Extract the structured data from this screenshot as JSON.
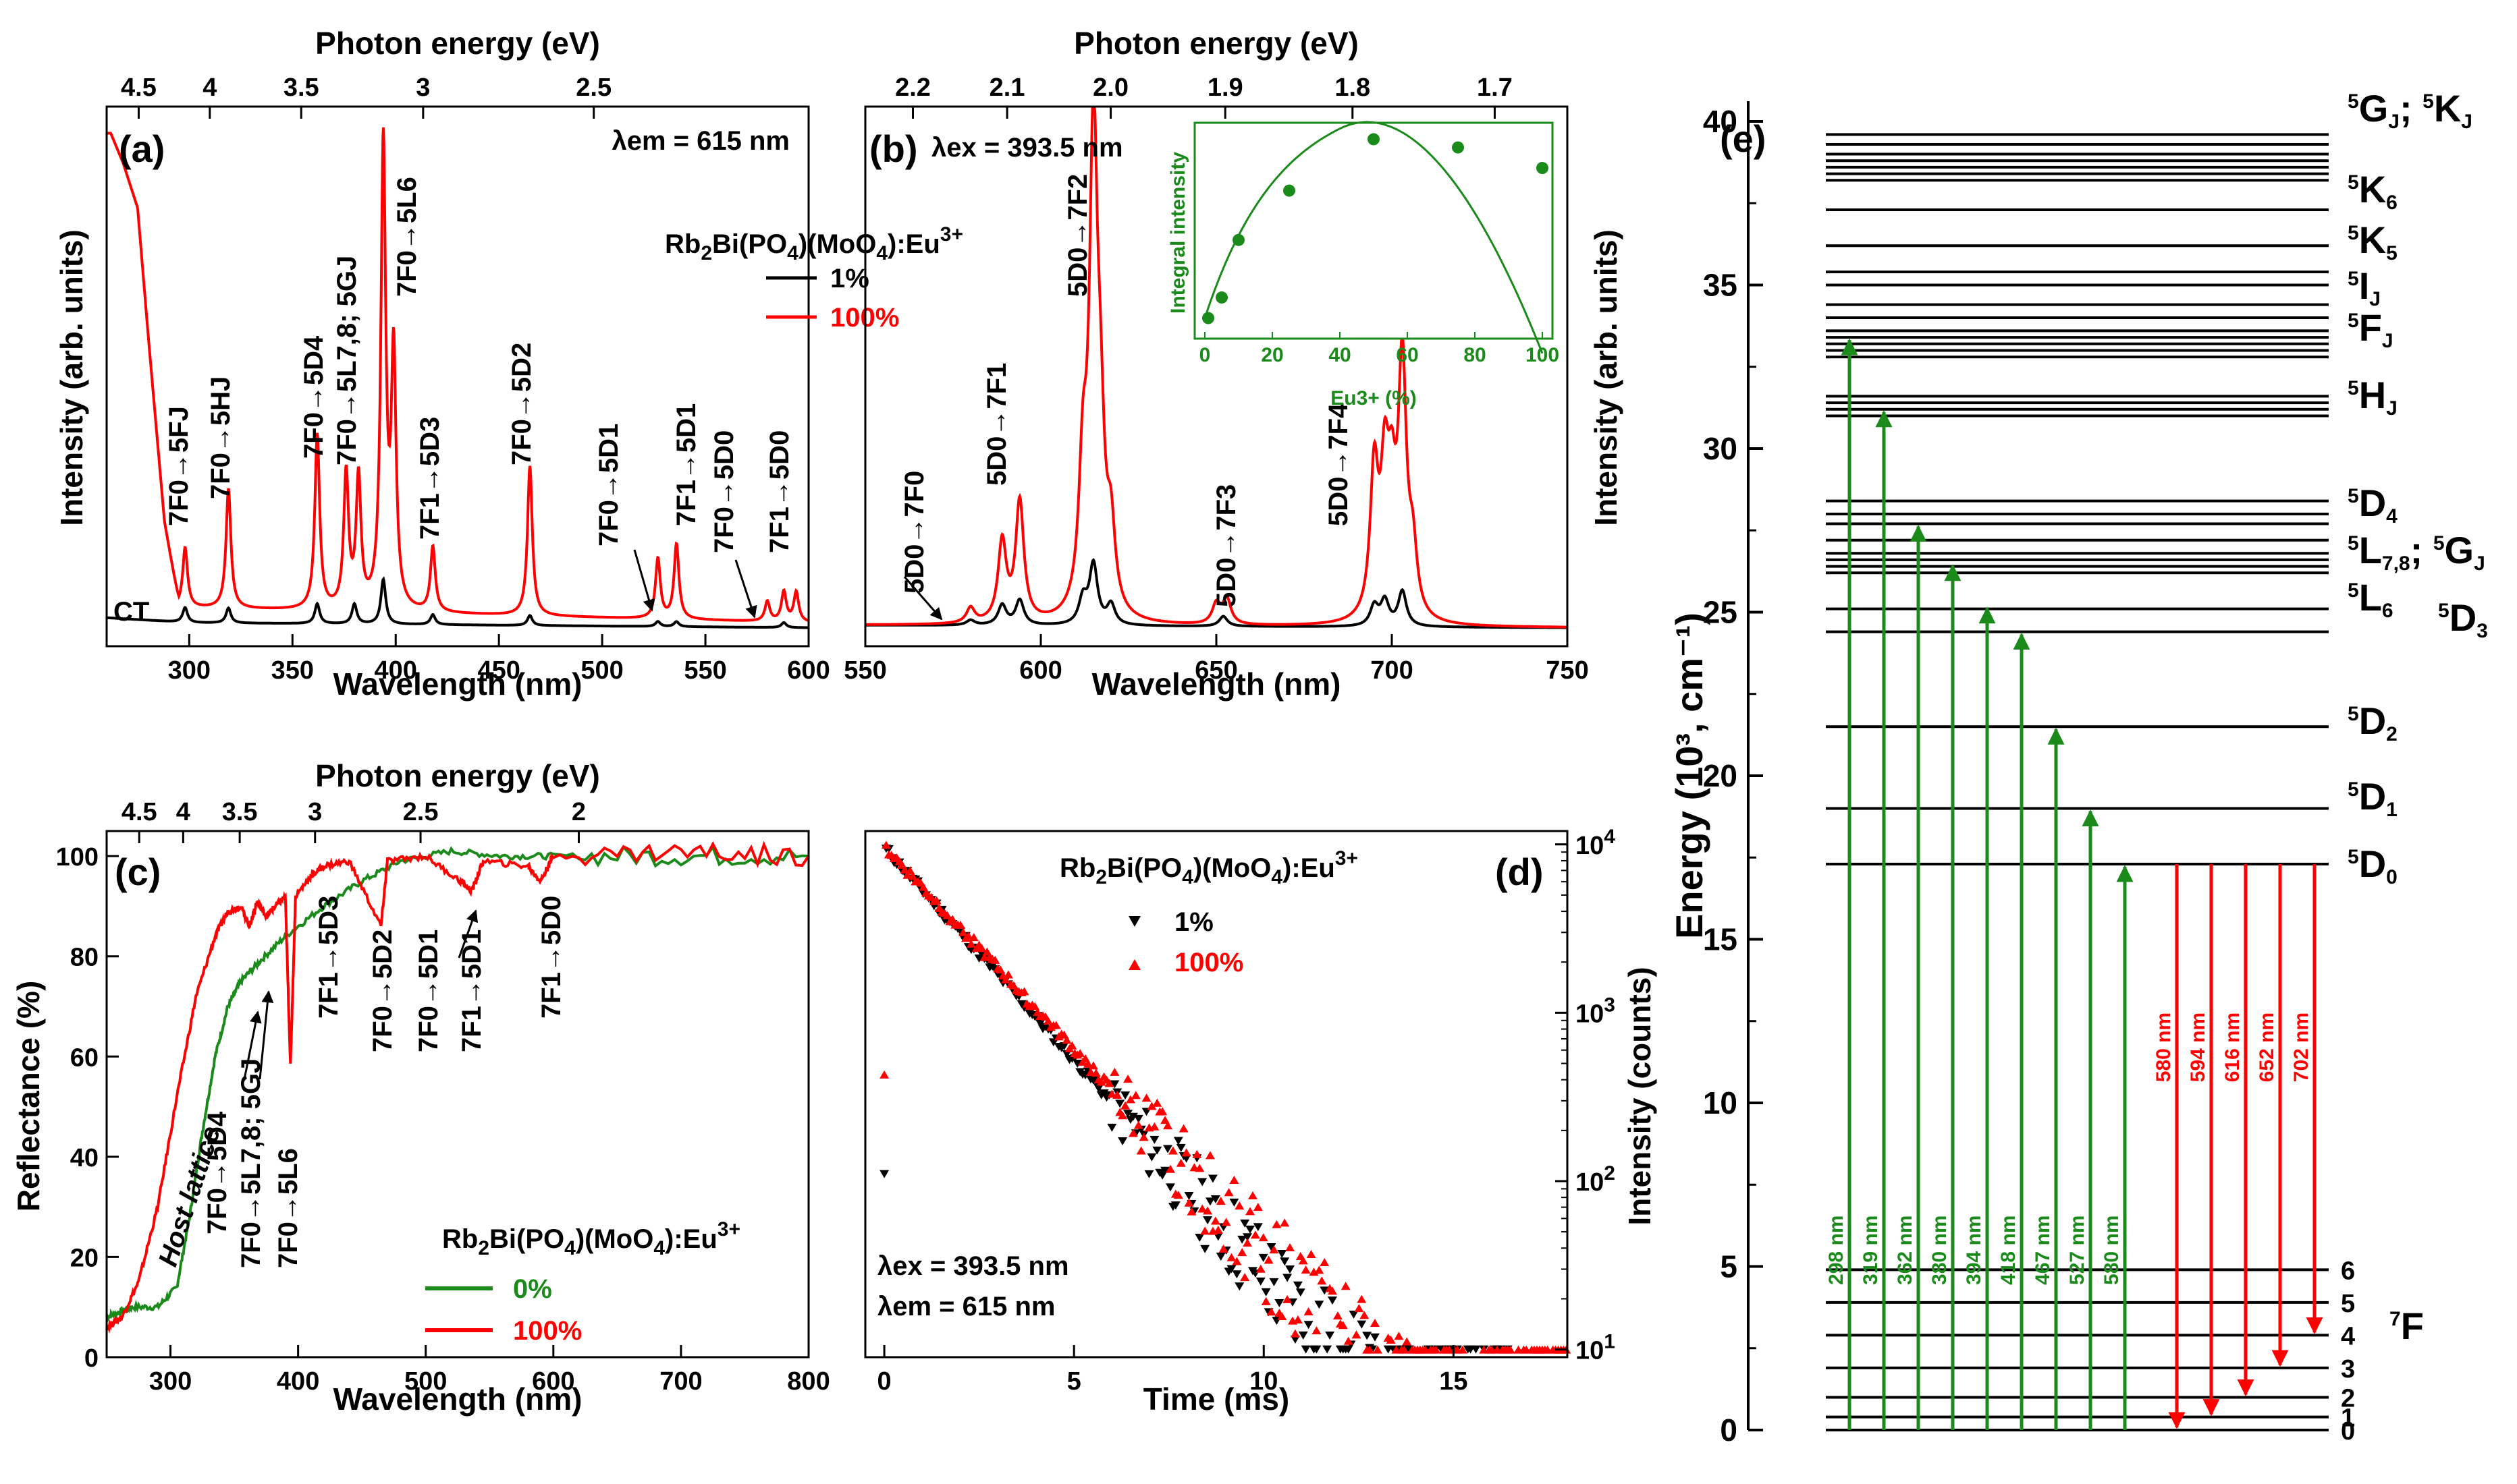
{
  "colors": {
    "black": "#000000",
    "red": "#ff0000",
    "green": "#1a8a1a",
    "green_dark": "#2e7d2e"
  },
  "chart_data": [
    {
      "panel": "(a)",
      "type": "line",
      "xlabel": "Wavelength (nm)",
      "ylabel": "Intensity (arb. units)",
      "top_axis_label": "Photon energy (eV)",
      "top_ticks": [
        "4.5",
        "4",
        "3.5",
        "3",
        "2.5"
      ],
      "top_tick_values_ev": [
        4.5,
        4.0,
        3.5,
        3.0,
        2.5
      ],
      "xlim": [
        260,
        600
      ],
      "xticks": [
        "300",
        "350",
        "400",
        "450",
        "500",
        "550",
        "600"
      ],
      "ylim": [
        0,
        1
      ],
      "condition": "λem = 615 nm",
      "legend_title": "Rb2Bi(PO4)(MoO4):Eu3+",
      "series": [
        {
          "name": "1%",
          "color": "#000000",
          "peaks": [
            [
              298,
              0.03
            ],
            [
              319,
              0.03
            ],
            [
              362,
              0.04
            ],
            [
              380,
              0.04
            ],
            [
              394,
              0.09
            ],
            [
              418,
              0.02
            ],
            [
              465,
              0.02
            ],
            [
              527,
              0.01
            ],
            [
              536,
              0.01
            ],
            [
              588,
              0.01
            ]
          ],
          "baseline": [
            [
              260,
              0.03
            ],
            [
              300,
              0.02
            ],
            [
              600,
              0.01
            ]
          ]
        },
        {
          "name": "100%",
          "color": "#ff0000",
          "peaks": [
            [
              298,
              0.12
            ],
            [
              319,
              0.24
            ],
            [
              362,
              0.35
            ],
            [
              376,
              0.27
            ],
            [
              382,
              0.26
            ],
            [
              394,
              0.93
            ],
            [
              399,
              0.5
            ],
            [
              418,
              0.13
            ],
            [
              465,
              0.3
            ],
            [
              527,
              0.12
            ],
            [
              536,
              0.15
            ],
            [
              580,
              0.04
            ],
            [
              588,
              0.06
            ],
            [
              594,
              0.06
            ]
          ],
          "baseline": [
            [
              262,
              1.0
            ],
            [
              268,
              0.94
            ],
            [
              275,
              0.85
            ],
            [
              280,
              0.6
            ],
            [
              288,
              0.22
            ],
            [
              295,
              0.05
            ],
            [
              600,
              0.02
            ]
          ]
        }
      ],
      "annotations": [
        "CT",
        "7F0→5FJ",
        "7F0→5HJ",
        "7F0→5D4",
        "7F0→5L7,8; 5GJ",
        "7F0→5L6",
        "7F1→5D3",
        "7F0→5D2",
        "7F0→5D1",
        "7F1→5D1",
        "7F0→5D0",
        "7F1→5D0"
      ]
    },
    {
      "panel": "(b)",
      "type": "line",
      "xlabel": "Wavelength (nm)",
      "ylabel": "Intensity (arb. units)",
      "top_axis_label": "Photon energy (eV)",
      "top_ticks": [
        "2.2",
        "2.1",
        "2.0",
        "1.9",
        "1.8",
        "1.7"
      ],
      "top_tick_values_ev": [
        2.2,
        2.1,
        2.0,
        1.9,
        1.8,
        1.7
      ],
      "xlim": [
        550,
        750
      ],
      "xticks": [
        "550",
        "600",
        "650",
        "700",
        "750"
      ],
      "ylim": [
        0,
        1
      ],
      "condition": "λex = 393.5 nm",
      "series": [
        {
          "name": "1%",
          "color": "#000000",
          "peaks": [
            [
              580,
              0.01
            ],
            [
              589,
              0.04
            ],
            [
              594,
              0.05
            ],
            [
              612,
              0.05
            ],
            [
              615,
              0.12
            ],
            [
              620,
              0.04
            ],
            [
              652,
              0.02
            ],
            [
              695,
              0.04
            ],
            [
              698,
              0.05
            ],
            [
              703,
              0.07
            ]
          ]
        },
        {
          "name": "100%",
          "color": "#ff0000",
          "peaks": [
            [
              580,
              0.03
            ],
            [
              589,
              0.16
            ],
            [
              594,
              0.24
            ],
            [
              612,
              0.26
            ],
            [
              615,
              0.94
            ],
            [
              617,
              0.27
            ],
            [
              620,
              0.15
            ],
            [
              650,
              0.04
            ],
            [
              653,
              0.05
            ],
            [
              695,
              0.29
            ],
            [
              698,
              0.26
            ],
            [
              700,
              0.2
            ],
            [
              703,
              0.5
            ],
            [
              706,
              0.12
            ]
          ]
        }
      ],
      "annotations": [
        "5D0→7F0",
        "5D0→7F1",
        "5D0→7F2",
        "5D0→7F3",
        "5D0→7F4"
      ],
      "inset": {
        "type": "scatter",
        "xlabel": "Eu3+ (%)",
        "ylabel": "Integral intensity",
        "xticks": [
          "0",
          "20",
          "40",
          "60",
          "80",
          "100"
        ],
        "xlim": [
          -3,
          103
        ],
        "x": [
          1,
          5,
          10,
          25,
          50,
          75,
          100
        ],
        "y": [
          0.1,
          0.2,
          0.48,
          0.72,
          0.97,
          0.93,
          0.83
        ],
        "ylim": [
          0,
          1.05
        ]
      }
    },
    {
      "panel": "(c)",
      "type": "line",
      "xlabel": "Wavelength (nm)",
      "ylabel": "Reflectance (%)",
      "top_axis_label": "Photon energy (eV)",
      "top_ticks": [
        "4.5",
        "4",
        "3.5",
        "3",
        "2.5",
        "2"
      ],
      "top_tick_values_ev": [
        4.5,
        4.0,
        3.5,
        3.0,
        2.5,
        2.0
      ],
      "xlim": [
        250,
        800
      ],
      "xticks": [
        "300",
        "400",
        "500",
        "600",
        "700",
        "800"
      ],
      "ylim": [
        0,
        105
      ],
      "yticks": [
        "0",
        "20",
        "40",
        "60",
        "80",
        "100"
      ],
      "legend_title": "Rb2Bi(PO4)(MoO4):Eu3+",
      "series": [
        {
          "name": "0%",
          "color": "#1a8a1a",
          "points": [
            [
              250,
              8
            ],
            [
              260,
              9
            ],
            [
              270,
              10
            ],
            [
              290,
              10
            ],
            [
              305,
              14
            ],
            [
              315,
              28
            ],
            [
              325,
              45
            ],
            [
              335,
              60
            ],
            [
              345,
              70
            ],
            [
              355,
              75
            ],
            [
              370,
              79
            ],
            [
              390,
              84
            ],
            [
              420,
              90
            ],
            [
              450,
              95
            ],
            [
              480,
              99
            ],
            [
              520,
              101
            ],
            [
              560,
              100
            ],
            [
              600,
              100
            ],
            [
              700,
              100
            ],
            [
              800,
              100
            ]
          ]
        },
        {
          "name": "100%",
          "color": "#ff0000",
          "points": [
            [
              250,
              6
            ],
            [
              262,
              8
            ],
            [
              275,
              15
            ],
            [
              290,
              30
            ],
            [
              305,
              52
            ],
            [
              320,
              72
            ],
            [
              335,
              84
            ],
            [
              345,
              89
            ],
            [
              355,
              90
            ],
            [
              362,
              86
            ],
            [
              368,
              91
            ],
            [
              375,
              88
            ],
            [
              382,
              90
            ],
            [
              390,
              92
            ],
            [
              394,
              58
            ],
            [
              398,
              92
            ],
            [
              410,
              96
            ],
            [
              420,
              98
            ],
            [
              440,
              99
            ],
            [
              465,
              86
            ],
            [
              470,
              99
            ],
            [
              500,
              100
            ],
            [
              527,
              95
            ],
            [
              536,
              93
            ],
            [
              545,
              99
            ],
            [
              580,
              98
            ],
            [
              590,
              95
            ],
            [
              600,
              100
            ],
            [
              700,
              101
            ],
            [
              800,
              100
            ]
          ]
        }
      ],
      "annotations": [
        "Host lattice",
        "7F0→5D4",
        "7F0→5L7,8; 5GJ",
        "7F0→5L6",
        "7F1→5D3",
        "7F0→5D2",
        "7F0→5D1",
        "7F1→5D1",
        "7F1→5D0"
      ]
    },
    {
      "panel": "(d)",
      "type": "scatter",
      "xlabel": "Time (ms)",
      "ylabel": "Intensity (counts)",
      "xlim": [
        -0.5,
        18
      ],
      "xticks": [
        "0",
        "5",
        "10",
        "15"
      ],
      "yscale": "log",
      "ylim": [
        9,
        12000
      ],
      "yticks_exp": [
        "4",
        "3",
        "2",
        "1"
      ],
      "conditions": [
        "λex = 393.5 nm",
        "λem = 615 nm"
      ],
      "legend_title": "Rb2Bi(PO4)(MoO4):Eu3+",
      "series": [
        {
          "name": "1%",
          "color": "#000000",
          "marker": "triangle-down",
          "decay_tau_ms": 1.72,
          "start_counts": 9500,
          "end_ms": 16.5,
          "outlier": [
            0,
            110
          ]
        },
        {
          "name": "100%",
          "color": "#ff0000",
          "marker": "triangle-up",
          "decay_tau_ms": 1.8,
          "start_counts": 9800,
          "end_ms": 18,
          "outlier": [
            0,
            430
          ]
        }
      ]
    },
    {
      "panel": "(e)",
      "type": "diagram",
      "ylabel": "Energy (10³, cm⁻¹)",
      "ylim": [
        0,
        40
      ],
      "yticks": [
        "0",
        "5",
        "10",
        "15",
        "20",
        "25",
        "30",
        "35",
        "40"
      ],
      "ground_levels": [
        0,
        0.4,
        1.0,
        1.9,
        2.9,
        3.9,
        4.9
      ],
      "ground_labels": [
        "0",
        "1",
        "2",
        "3",
        "4",
        "5",
        "6"
      ],
      "ground_term": "7F",
      "excited_levels": [
        17.3,
        19.0,
        21.5,
        24.4,
        25.1,
        26.2,
        26.4,
        26.6,
        26.8,
        27.2,
        27.7,
        28.0,
        28.4,
        31.0,
        31.2,
        31.4,
        31.6,
        32.8,
        33.0,
        33.2,
        33.4,
        33.6,
        34.0,
        34.4,
        35.0,
        35.4,
        36.2,
        37.3,
        38.2,
        38.4,
        38.6,
        38.8,
        39.0,
        39.3,
        39.6
      ],
      "term_labels": [
        "5GJ; 5KJ",
        "5K6",
        "5K5",
        "5IJ",
        "5FJ",
        "5HJ",
        "5D4",
        "5L7,8; 5GJ",
        "5L6",
        "5D3",
        "5D2",
        "5D1",
        "5D0"
      ],
      "excitation": [
        {
          "label": "298 nm",
          "energy": 33.4
        },
        {
          "label": "319 nm",
          "energy": 31.2
        },
        {
          "label": "362 nm",
          "energy": 27.7
        },
        {
          "label": "380 nm",
          "energy": 26.5
        },
        {
          "label": "394 nm",
          "energy": 25.2
        },
        {
          "label": "418 nm",
          "energy": 24.4
        },
        {
          "label": "467 nm",
          "energy": 21.5
        },
        {
          "label": "527 nm",
          "energy": 19.0
        },
        {
          "label": "580 nm",
          "energy": 17.3
        }
      ],
      "emission": [
        {
          "label": "580 nm",
          "end": 0
        },
        {
          "label": "594 nm",
          "end": 0.4
        },
        {
          "label": "616 nm",
          "end": 1.0
        },
        {
          "label": "652 nm",
          "end": 1.9
        },
        {
          "label": "702 nm",
          "end": 2.9
        }
      ]
    }
  ]
}
